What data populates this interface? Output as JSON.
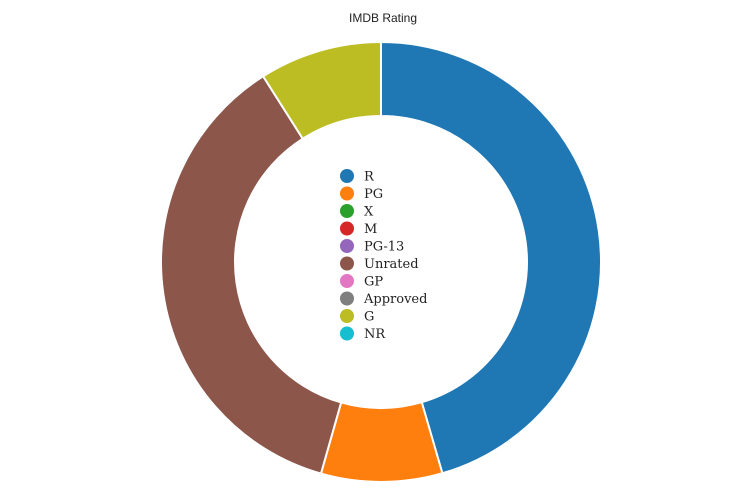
{
  "chart_data": {
    "type": "pie",
    "title": "IMDB Rating",
    "donut": true,
    "legend_position": "center",
    "categories": [
      "R",
      "PG",
      "X",
      "M",
      "PG-13",
      "Unrated",
      "GP",
      "Approved",
      "G",
      "NR"
    ],
    "values": [
      45.5,
      8.9,
      0,
      0,
      0,
      36.6,
      0,
      0,
      9.0,
      0
    ],
    "colors": [
      "#1f77b4",
      "#ff7f0e",
      "#2ca02c",
      "#d62728",
      "#9467bd",
      "#8c564b",
      "#e377c2",
      "#7f7f7f",
      "#bcbd22",
      "#17becf"
    ]
  }
}
